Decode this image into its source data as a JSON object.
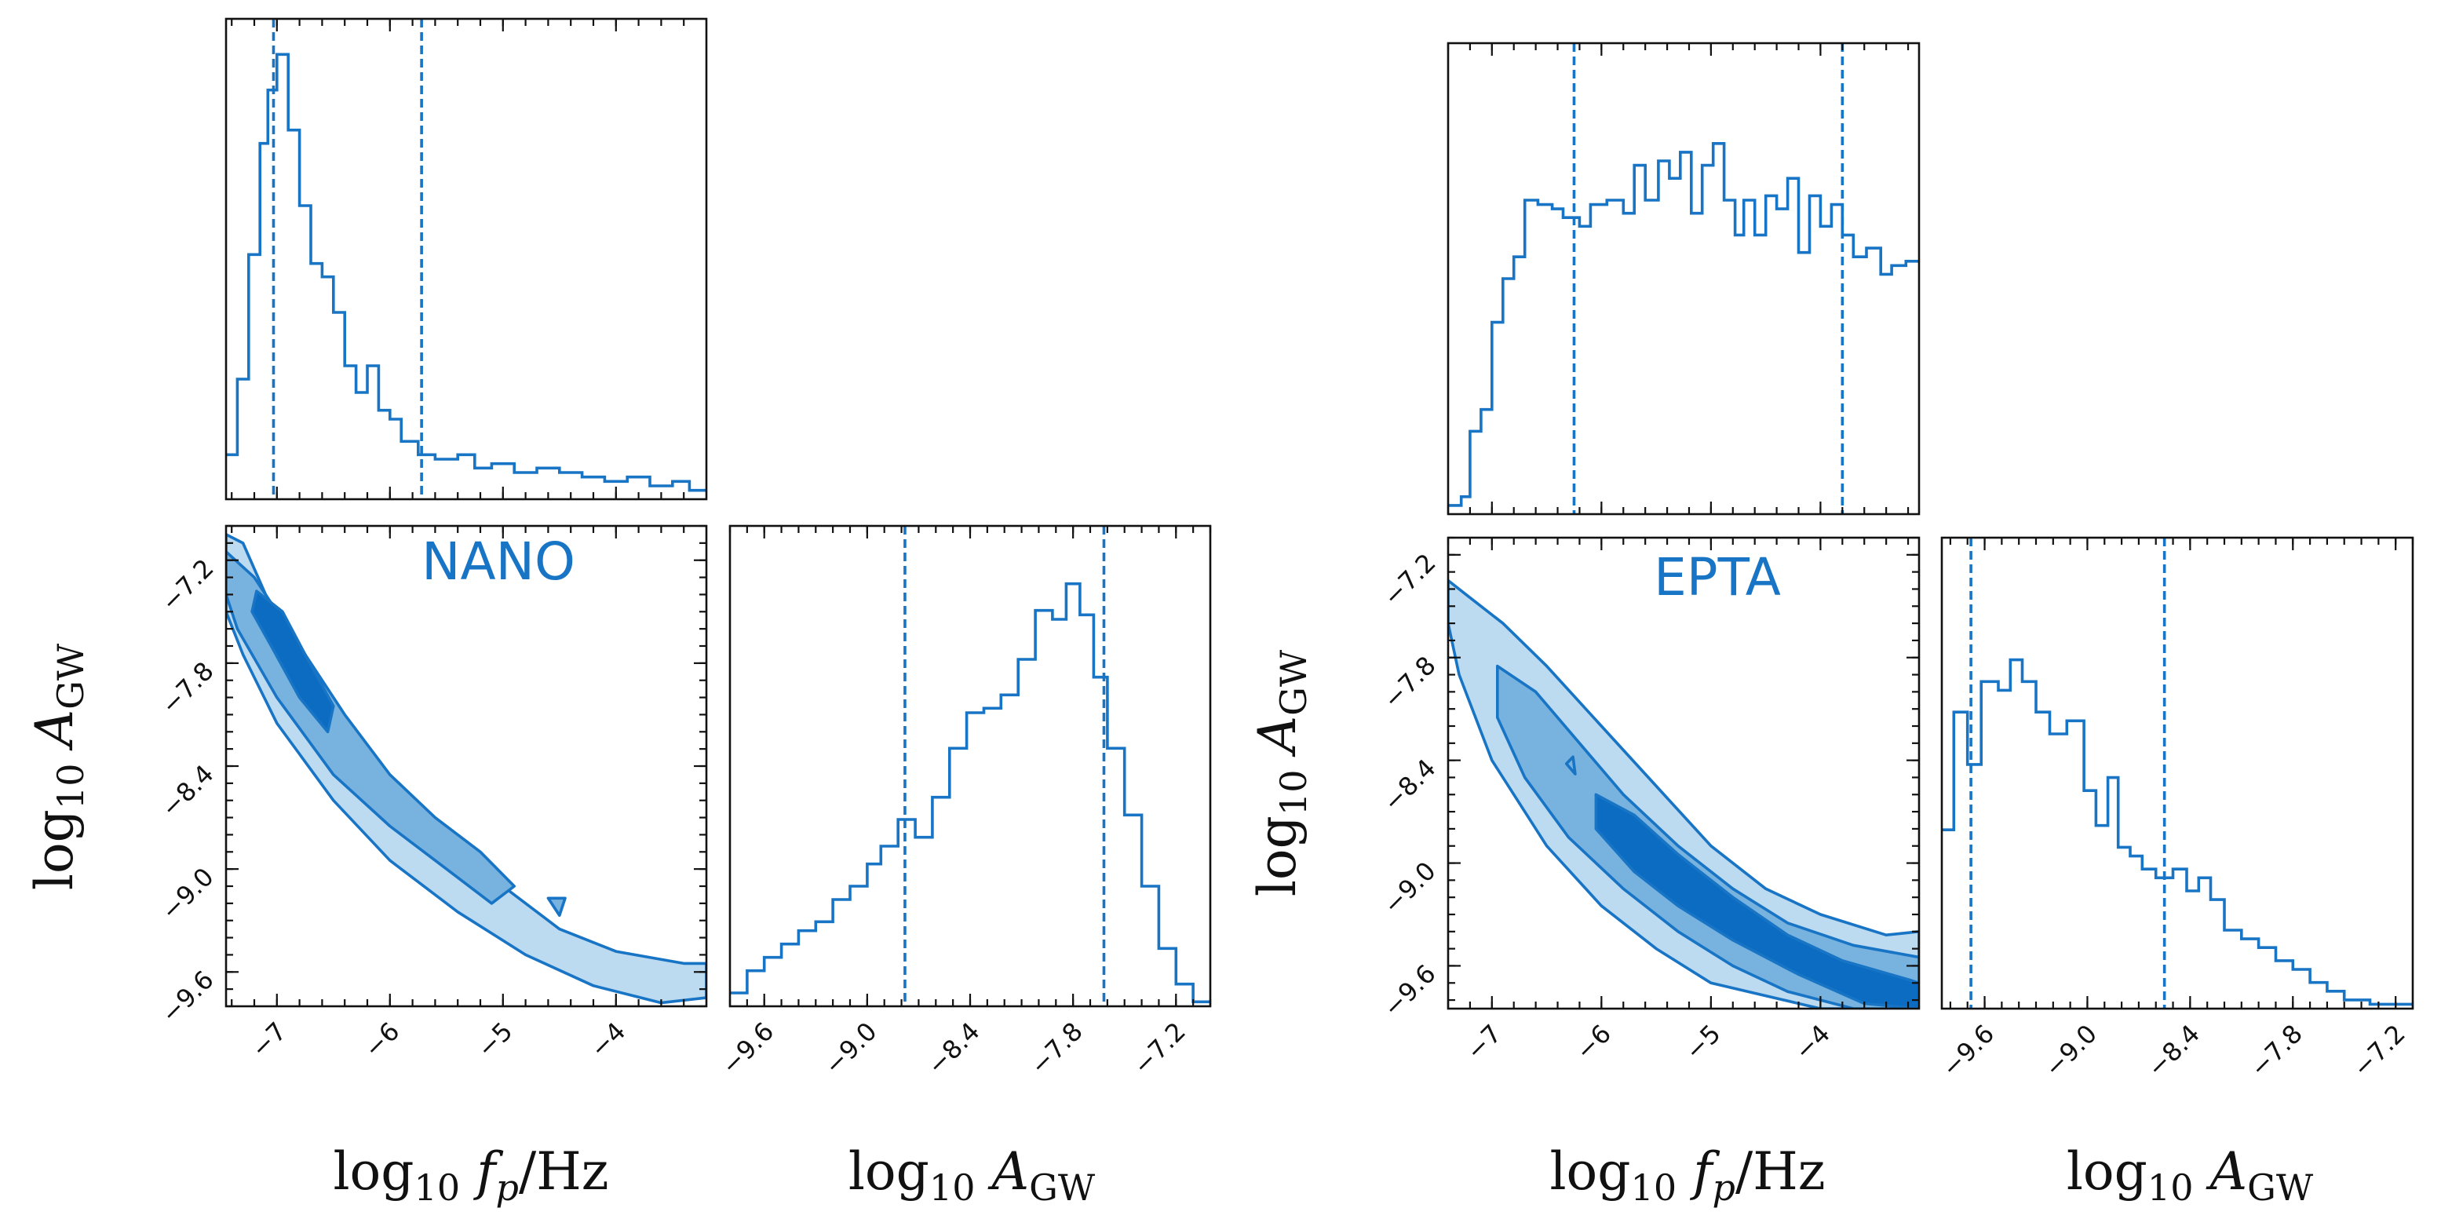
{
  "colors": {
    "line": "#1874c4",
    "fill_light": "#bcdaf0",
    "fill_mid": "#78b2df",
    "fill_dark": "#0c6cc2",
    "axis": "#111111",
    "title": "#1874c4"
  },
  "axis_text": {
    "log": "log",
    "ten": "10",
    "A": "A",
    "GW": "GW",
    "f": "f",
    "p": "p",
    "hz": "/Hz"
  },
  "chart_data": [
    {
      "id": "NANO",
      "title": "NANO",
      "type": "corner",
      "parameters": [
        "log10_fp",
        "log10_AGW"
      ],
      "xlabel_fp": "log10 f_p/Hz",
      "xlabel_A": "log10 A_GW",
      "ylabel": "log10 A_GW",
      "fp_range": [
        -7.45,
        -3.2
      ],
      "A_range": [
        -9.8,
        -7.0
      ],
      "fp_ticks": [
        -7,
        -6,
        -5,
        -4
      ],
      "fp_tick_labels": [
        "−7",
        "−6",
        "−5",
        "−4"
      ],
      "A_ticks": [
        -9.6,
        -9.0,
        -8.4,
        -7.8,
        -7.2
      ],
      "A_tick_labels": [
        "−9.6",
        "−9.0",
        "−8.4",
        "−7.8",
        "−7.2"
      ],
      "hist_fp": {
        "dashed_lines": [
          -7.03,
          -5.72
        ],
        "steps": [
          [
            -7.45,
            0.1
          ],
          [
            -7.35,
            0.27
          ],
          [
            -7.25,
            0.55
          ],
          [
            -7.15,
            0.8
          ],
          [
            -7.08,
            0.92
          ],
          [
            -7.0,
            1.0
          ],
          [
            -6.9,
            0.83
          ],
          [
            -6.8,
            0.66
          ],
          [
            -6.7,
            0.53
          ],
          [
            -6.6,
            0.5
          ],
          [
            -6.5,
            0.42
          ],
          [
            -6.4,
            0.3
          ],
          [
            -6.3,
            0.24
          ],
          [
            -6.2,
            0.3
          ],
          [
            -6.1,
            0.2
          ],
          [
            -6.0,
            0.18
          ],
          [
            -5.9,
            0.13
          ],
          [
            -5.75,
            0.1
          ],
          [
            -5.6,
            0.09
          ],
          [
            -5.4,
            0.1
          ],
          [
            -5.25,
            0.07
          ],
          [
            -5.1,
            0.08
          ],
          [
            -4.9,
            0.06
          ],
          [
            -4.7,
            0.07
          ],
          [
            -4.5,
            0.06
          ],
          [
            -4.3,
            0.05
          ],
          [
            -4.1,
            0.04
          ],
          [
            -3.9,
            0.05
          ],
          [
            -3.7,
            0.03
          ],
          [
            -3.5,
            0.04
          ],
          [
            -3.35,
            0.02
          ]
        ]
      },
      "hist_A": {
        "dashed_lines": [
          -8.78,
          -7.62
        ],
        "steps": [
          [
            -9.8,
            0.03
          ],
          [
            -9.7,
            0.08
          ],
          [
            -9.6,
            0.11
          ],
          [
            -9.5,
            0.14
          ],
          [
            -9.4,
            0.17
          ],
          [
            -9.3,
            0.19
          ],
          [
            -9.2,
            0.24
          ],
          [
            -9.1,
            0.27
          ],
          [
            -9.0,
            0.32
          ],
          [
            -8.92,
            0.36
          ],
          [
            -8.82,
            0.42
          ],
          [
            -8.72,
            0.38
          ],
          [
            -8.62,
            0.47
          ],
          [
            -8.52,
            0.58
          ],
          [
            -8.42,
            0.66
          ],
          [
            -8.32,
            0.67
          ],
          [
            -8.22,
            0.7
          ],
          [
            -8.12,
            0.78
          ],
          [
            -8.02,
            0.89
          ],
          [
            -7.92,
            0.87
          ],
          [
            -7.84,
            0.95
          ],
          [
            -7.76,
            0.88
          ],
          [
            -7.68,
            0.74
          ],
          [
            -7.6,
            0.58
          ],
          [
            -7.5,
            0.43
          ],
          [
            -7.4,
            0.27
          ],
          [
            -7.3,
            0.13
          ],
          [
            -7.2,
            0.05
          ],
          [
            -7.1,
            0.01
          ]
        ]
      },
      "contours": {
        "outer": [
          [
            -7.45,
            -7.05
          ],
          [
            -7.3,
            -7.1
          ],
          [
            -7.1,
            -7.4
          ],
          [
            -6.8,
            -7.75
          ],
          [
            -6.4,
            -8.15
          ],
          [
            -6.0,
            -8.5
          ],
          [
            -5.5,
            -8.8
          ],
          [
            -5.0,
            -9.1
          ],
          [
            -4.5,
            -9.35
          ],
          [
            -4.0,
            -9.48
          ],
          [
            -3.4,
            -9.55
          ],
          [
            -3.2,
            -9.55
          ],
          [
            -3.2,
            -9.75
          ],
          [
            -3.6,
            -9.78
          ],
          [
            -4.2,
            -9.68
          ],
          [
            -4.8,
            -9.5
          ],
          [
            -5.4,
            -9.25
          ],
          [
            -6.0,
            -8.95
          ],
          [
            -6.5,
            -8.6
          ],
          [
            -7.0,
            -8.15
          ],
          [
            -7.3,
            -7.75
          ],
          [
            -7.45,
            -7.5
          ]
        ],
        "mid": [
          [
            -7.45,
            -7.15
          ],
          [
            -7.2,
            -7.3
          ],
          [
            -6.8,
            -7.7
          ],
          [
            -6.4,
            -8.1
          ],
          [
            -6.0,
            -8.45
          ],
          [
            -5.6,
            -8.7
          ],
          [
            -5.2,
            -8.9
          ],
          [
            -4.9,
            -9.1
          ],
          [
            -5.1,
            -9.2
          ],
          [
            -5.5,
            -9.0
          ],
          [
            -6.0,
            -8.75
          ],
          [
            -6.5,
            -8.45
          ],
          [
            -7.0,
            -8.0
          ],
          [
            -7.35,
            -7.6
          ],
          [
            -7.45,
            -7.4
          ]
        ],
        "inner": [
          [
            -7.18,
            -7.38
          ],
          [
            -6.95,
            -7.5
          ],
          [
            -6.75,
            -7.75
          ],
          [
            -6.5,
            -8.05
          ],
          [
            -6.55,
            -8.2
          ],
          [
            -6.8,
            -8.0
          ],
          [
            -7.05,
            -7.7
          ],
          [
            -7.22,
            -7.5
          ]
        ],
        "island": [
          [
            -4.6,
            -9.17
          ],
          [
            -4.45,
            -9.17
          ],
          [
            -4.5,
            -9.27
          ]
        ]
      }
    },
    {
      "id": "EPTA",
      "title": "EPTA",
      "type": "corner",
      "parameters": [
        "log10_fp",
        "log10_AGW"
      ],
      "xlabel_fp": "log10 f_p/Hz",
      "xlabel_A": "log10 A_GW",
      "ylabel": "log10 A_GW",
      "fp_range": [
        -7.4,
        -3.1
      ],
      "A_range": [
        -9.85,
        -7.1
      ],
      "fp_ticks": [
        -7,
        -6,
        -5,
        -4
      ],
      "fp_tick_labels": [
        "−7",
        "−6",
        "−5",
        "−4"
      ],
      "A_ticks": [
        -9.6,
        -9.0,
        -8.4,
        -7.8,
        -7.2
      ],
      "A_tick_labels": [
        "−9.6",
        "−9.0",
        "−8.4",
        "−7.8",
        "−7.2"
      ],
      "hist_fp": {
        "dashed_lines": [
          -6.25,
          -3.8
        ],
        "steps": [
          [
            -7.4,
            0.02
          ],
          [
            -7.28,
            0.04
          ],
          [
            -7.2,
            0.19
          ],
          [
            -7.1,
            0.24
          ],
          [
            -7.0,
            0.44
          ],
          [
            -6.9,
            0.54
          ],
          [
            -6.8,
            0.59
          ],
          [
            -6.7,
            0.72
          ],
          [
            -6.58,
            0.71
          ],
          [
            -6.45,
            0.7
          ],
          [
            -6.35,
            0.68
          ],
          [
            -6.2,
            0.66
          ],
          [
            -6.1,
            0.71
          ],
          [
            -5.95,
            0.72
          ],
          [
            -5.8,
            0.69
          ],
          [
            -5.7,
            0.8
          ],
          [
            -5.6,
            0.72
          ],
          [
            -5.48,
            0.81
          ],
          [
            -5.38,
            0.77
          ],
          [
            -5.28,
            0.83
          ],
          [
            -5.18,
            0.69
          ],
          [
            -5.08,
            0.8
          ],
          [
            -4.98,
            0.85
          ],
          [
            -4.88,
            0.72
          ],
          [
            -4.78,
            0.64
          ],
          [
            -4.7,
            0.72
          ],
          [
            -4.6,
            0.64
          ],
          [
            -4.5,
            0.73
          ],
          [
            -4.4,
            0.7
          ],
          [
            -4.3,
            0.77
          ],
          [
            -4.2,
            0.6
          ],
          [
            -4.1,
            0.73
          ],
          [
            -4.0,
            0.66
          ],
          [
            -3.9,
            0.71
          ],
          [
            -3.8,
            0.64
          ],
          [
            -3.7,
            0.59
          ],
          [
            -3.58,
            0.61
          ],
          [
            -3.45,
            0.55
          ],
          [
            -3.35,
            0.57
          ],
          [
            -3.22,
            0.58
          ]
        ]
      },
      "hist_A": {
        "dashed_lines": [
          -9.68,
          -8.55
        ],
        "steps": [
          [
            -9.85,
            0.41
          ],
          [
            -9.78,
            0.68
          ],
          [
            -9.7,
            0.56
          ],
          [
            -9.62,
            0.75
          ],
          [
            -9.52,
            0.73
          ],
          [
            -9.45,
            0.8
          ],
          [
            -9.38,
            0.75
          ],
          [
            -9.3,
            0.68
          ],
          [
            -9.22,
            0.63
          ],
          [
            -9.12,
            0.66
          ],
          [
            -9.02,
            0.5
          ],
          [
            -8.95,
            0.42
          ],
          [
            -8.88,
            0.53
          ],
          [
            -8.82,
            0.37
          ],
          [
            -8.75,
            0.35
          ],
          [
            -8.68,
            0.32
          ],
          [
            -8.6,
            0.3
          ],
          [
            -8.5,
            0.32
          ],
          [
            -8.42,
            0.27
          ],
          [
            -8.35,
            0.3
          ],
          [
            -8.28,
            0.25
          ],
          [
            -8.2,
            0.18
          ],
          [
            -8.1,
            0.16
          ],
          [
            -8.0,
            0.14
          ],
          [
            -7.9,
            0.11
          ],
          [
            -7.8,
            0.09
          ],
          [
            -7.7,
            0.06
          ],
          [
            -7.6,
            0.04
          ],
          [
            -7.5,
            0.02
          ],
          [
            -7.35,
            0.01
          ],
          [
            -7.2,
            0.01
          ]
        ]
      },
      "contours": {
        "outer": [
          [
            -7.4,
            -7.35
          ],
          [
            -7.2,
            -7.45
          ],
          [
            -6.9,
            -7.6
          ],
          [
            -6.5,
            -7.85
          ],
          [
            -6.0,
            -8.2
          ],
          [
            -5.5,
            -8.55
          ],
          [
            -5.0,
            -8.9
          ],
          [
            -4.5,
            -9.15
          ],
          [
            -4.0,
            -9.3
          ],
          [
            -3.4,
            -9.42
          ],
          [
            -3.1,
            -9.4
          ],
          [
            -3.1,
            -9.85
          ],
          [
            -4.0,
            -9.85
          ],
          [
            -5.0,
            -9.7
          ],
          [
            -5.5,
            -9.5
          ],
          [
            -6.0,
            -9.25
          ],
          [
            -6.5,
            -8.9
          ],
          [
            -7.0,
            -8.4
          ],
          [
            -7.3,
            -7.9
          ],
          [
            -7.4,
            -7.6
          ]
        ],
        "mid": [
          [
            -6.95,
            -7.85
          ],
          [
            -6.6,
            -8.0
          ],
          [
            -6.2,
            -8.3
          ],
          [
            -5.8,
            -8.6
          ],
          [
            -5.3,
            -8.9
          ],
          [
            -4.8,
            -9.15
          ],
          [
            -4.3,
            -9.35
          ],
          [
            -3.7,
            -9.48
          ],
          [
            -3.1,
            -9.55
          ],
          [
            -3.1,
            -9.85
          ],
          [
            -3.7,
            -9.85
          ],
          [
            -4.3,
            -9.75
          ],
          [
            -4.8,
            -9.6
          ],
          [
            -5.3,
            -9.4
          ],
          [
            -5.8,
            -9.15
          ],
          [
            -6.3,
            -8.85
          ],
          [
            -6.7,
            -8.5
          ],
          [
            -6.95,
            -8.15
          ]
        ],
        "inner": [
          [
            -6.05,
            -8.6
          ],
          [
            -5.7,
            -8.72
          ],
          [
            -5.3,
            -8.95
          ],
          [
            -4.8,
            -9.2
          ],
          [
            -4.3,
            -9.42
          ],
          [
            -3.8,
            -9.57
          ],
          [
            -3.2,
            -9.68
          ],
          [
            -3.1,
            -9.7
          ],
          [
            -3.1,
            -9.85
          ],
          [
            -3.6,
            -9.82
          ],
          [
            -4.2,
            -9.65
          ],
          [
            -4.8,
            -9.45
          ],
          [
            -5.3,
            -9.25
          ],
          [
            -5.7,
            -9.05
          ],
          [
            -6.05,
            -8.8
          ]
        ],
        "island": [
          [
            -6.32,
            -8.42
          ],
          [
            -6.26,
            -8.38
          ],
          [
            -6.24,
            -8.48
          ]
        ]
      }
    }
  ]
}
